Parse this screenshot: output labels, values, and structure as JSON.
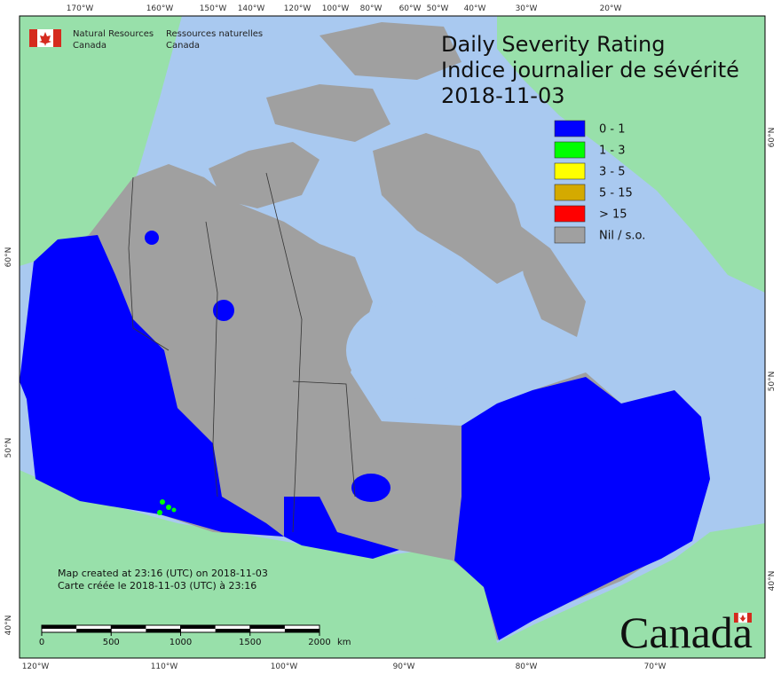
{
  "header": {
    "en": [
      "Natural Resources",
      "Canada"
    ],
    "fr": [
      "Ressources naturelles",
      "Canada"
    ]
  },
  "title": [
    "Daily Severity Rating",
    "Indice journalier de sévérité",
    "2018-11-03"
  ],
  "legend": [
    {
      "label": "0 - 1",
      "color": "#0000ff"
    },
    {
      "label": "1 - 3",
      "color": "#00ff00"
    },
    {
      "label": "3 - 5",
      "color": "#ffff00"
    },
    {
      "label": "5 - 15",
      "color": "#d4aa00"
    },
    {
      "label": "> 15",
      "color": "#ff0000"
    },
    {
      "label": "Nil / s.o.",
      "color": "#a0a0a0"
    }
  ],
  "graticule": {
    "top": [
      "170°W",
      "160°W",
      "150°W",
      "140°W",
      "120°W",
      "100°W",
      "80°W",
      "60°W",
      "50°W",
      "40°W",
      "30°W",
      "20°W"
    ],
    "bottom": [
      "120°W",
      "110°W",
      "100°W",
      "90°W",
      "80°W",
      "70°W"
    ],
    "left": [
      "60°N",
      "50°N",
      "40°N"
    ],
    "right": [
      "60°N",
      "50°N",
      "40°N"
    ]
  },
  "notes": [
    "Map created at 23:16 (UTC) on 2018-11-03",
    "Carte créée le 2018-11-03 (UTC) à 23:16"
  ],
  "scale_bar": {
    "ticks": [
      0,
      500,
      1000,
      1500,
      2000
    ],
    "unit": "km"
  },
  "wordmark": "Canada"
}
